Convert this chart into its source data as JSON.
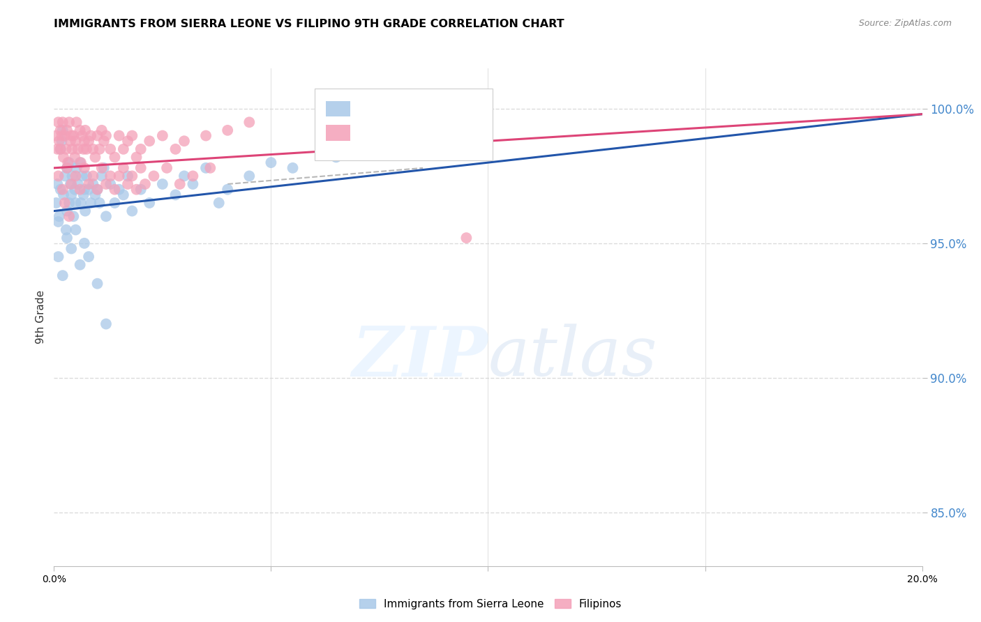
{
  "title": "IMMIGRANTS FROM SIERRA LEONE VS FILIPINO 9TH GRADE CORRELATION CHART",
  "source": "Source: ZipAtlas.com",
  "ylabel": "9th Grade",
  "ylabel_right_ticks": [
    85.0,
    90.0,
    95.0,
    100.0
  ],
  "xlim": [
    0.0,
    20.0
  ],
  "ylim": [
    83.0,
    101.5
  ],
  "blue_color": "#a8c8e8",
  "pink_color": "#f4a0b8",
  "blue_line_color": "#2255aa",
  "pink_line_color": "#dd4477",
  "legend_blue_r_color": "#3366cc",
  "legend_blue_n_color": "#3366cc",
  "legend_pink_r_color": "#dd4477",
  "legend_pink_n_color": "#dd4477",
  "grid_color": "#d8d8d8",
  "right_axis_color": "#4488cc",
  "blue_scatter_x": [
    0.05,
    0.08,
    0.1,
    0.12,
    0.15,
    0.15,
    0.18,
    0.2,
    0.22,
    0.25,
    0.28,
    0.3,
    0.3,
    0.35,
    0.35,
    0.38,
    0.4,
    0.42,
    0.45,
    0.48,
    0.5,
    0.52,
    0.55,
    0.6,
    0.62,
    0.65,
    0.68,
    0.7,
    0.72,
    0.75,
    0.8,
    0.85,
    0.9,
    0.95,
    1.0,
    1.05,
    1.1,
    1.15,
    1.2,
    1.3,
    1.4,
    1.5,
    1.6,
    1.7,
    1.8,
    2.0,
    2.2,
    2.5,
    2.8,
    3.0,
    3.2,
    3.5,
    3.8,
    4.0,
    4.5,
    5.0,
    5.5,
    6.5,
    7.5,
    8.5,
    0.1,
    0.2,
    0.3,
    0.4,
    0.5,
    0.6,
    0.7,
    0.8,
    1.0,
    1.2
  ],
  "blue_scatter_y": [
    96.5,
    97.2,
    95.8,
    96.0,
    98.5,
    97.0,
    98.8,
    99.2,
    96.8,
    97.5,
    95.5,
    96.2,
    97.8,
    98.0,
    96.5,
    97.2,
    96.8,
    97.5,
    96.0,
    97.0,
    96.5,
    97.8,
    97.2,
    98.0,
    96.5,
    97.5,
    96.8,
    97.0,
    96.2,
    97.5,
    97.0,
    96.5,
    97.2,
    96.8,
    97.0,
    96.5,
    97.5,
    97.8,
    96.0,
    97.2,
    96.5,
    97.0,
    96.8,
    97.5,
    96.2,
    97.0,
    96.5,
    97.2,
    96.8,
    97.5,
    97.2,
    97.8,
    96.5,
    97.0,
    97.5,
    98.0,
    97.8,
    98.2,
    98.5,
    99.0,
    94.5,
    93.8,
    95.2,
    94.8,
    95.5,
    94.2,
    95.0,
    94.5,
    93.5,
    92.0
  ],
  "pink_scatter_x": [
    0.05,
    0.08,
    0.1,
    0.12,
    0.15,
    0.15,
    0.18,
    0.2,
    0.22,
    0.25,
    0.28,
    0.3,
    0.32,
    0.35,
    0.38,
    0.4,
    0.42,
    0.45,
    0.48,
    0.5,
    0.52,
    0.55,
    0.6,
    0.62,
    0.65,
    0.68,
    0.7,
    0.72,
    0.75,
    0.8,
    0.85,
    0.9,
    0.95,
    1.0,
    1.05,
    1.1,
    1.15,
    1.2,
    1.3,
    1.4,
    1.5,
    1.6,
    1.7,
    1.8,
    1.9,
    2.0,
    2.2,
    2.5,
    2.8,
    3.0,
    3.5,
    4.0,
    4.5,
    0.1,
    0.2,
    0.3,
    0.4,
    0.5,
    0.6,
    0.7,
    0.8,
    0.9,
    1.0,
    1.1,
    1.2,
    1.3,
    1.4,
    1.5,
    1.6,
    1.7,
    1.8,
    1.9,
    2.0,
    2.1,
    2.3,
    2.6,
    2.9,
    3.2,
    3.6,
    9.5,
    0.25,
    0.35
  ],
  "pink_scatter_y": [
    99.0,
    98.5,
    99.5,
    98.8,
    99.2,
    98.5,
    99.0,
    99.5,
    98.2,
    99.0,
    98.5,
    99.2,
    98.0,
    99.5,
    98.8,
    99.0,
    98.5,
    99.0,
    98.2,
    98.8,
    99.5,
    98.5,
    99.2,
    98.0,
    99.0,
    98.5,
    98.8,
    99.2,
    98.5,
    98.8,
    99.0,
    98.5,
    98.2,
    99.0,
    98.5,
    99.2,
    98.8,
    99.0,
    98.5,
    98.2,
    99.0,
    98.5,
    98.8,
    99.0,
    98.2,
    98.5,
    98.8,
    99.0,
    98.5,
    98.8,
    99.0,
    99.2,
    99.5,
    97.5,
    97.0,
    97.8,
    97.2,
    97.5,
    97.0,
    97.8,
    97.2,
    97.5,
    97.0,
    97.8,
    97.2,
    97.5,
    97.0,
    97.5,
    97.8,
    97.2,
    97.5,
    97.0,
    97.8,
    97.2,
    97.5,
    97.8,
    97.2,
    97.5,
    97.8,
    95.2,
    96.5,
    96.0
  ],
  "blue_trendline_x0": 0.0,
  "blue_trendline_y0": 96.2,
  "blue_trendline_x1": 20.0,
  "blue_trendline_y1": 99.8,
  "pink_trendline_x0": 0.0,
  "pink_trendline_y0": 97.8,
  "pink_trendline_x1": 20.0,
  "pink_trendline_y1": 99.8,
  "dash_line_x0": 4.0,
  "dash_line_y0": 97.2,
  "dash_line_x1": 8.5,
  "dash_line_y1": 97.8
}
